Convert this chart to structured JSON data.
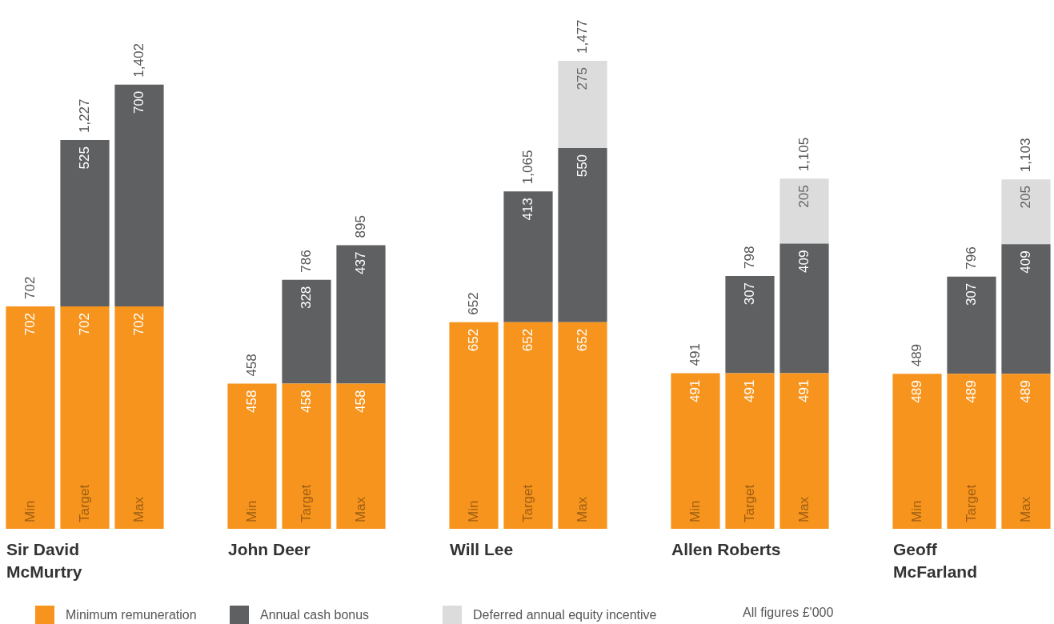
{
  "chart_data": [
    {
      "type": "bar",
      "title": "Sir David McMurtry",
      "categories": [
        "Min",
        "Target",
        "Max"
      ],
      "stacked": true,
      "data_labels": true,
      "legend": "bottom",
      "totals": [
        "702",
        "1,227",
        "1,402"
      ],
      "annotations": [
        "All figures £'000"
      ],
      "series": [
        {
          "name": "Minimum remuneration",
          "color": "#f7941d",
          "values": [
            702,
            702,
            702
          ]
        },
        {
          "name": "Annual cash bonus",
          "color": "#5f6062",
          "values": [
            null,
            525,
            700
          ]
        },
        {
          "name": "Deferred annual equity incentive",
          "color": "#dcdcdc",
          "values": [
            null,
            null,
            null
          ]
        }
      ]
    },
    {
      "type": "bar",
      "title": "John Deer",
      "categories": [
        "Min",
        "Target",
        "Max"
      ],
      "stacked": true,
      "data_labels": true,
      "totals": [
        "458",
        "786",
        "895"
      ],
      "series": [
        {
          "color": "#f7941d",
          "values": [
            458,
            458,
            458
          ]
        },
        {
          "color": "#5f6062",
          "values": [
            null,
            328,
            437
          ]
        }
      ]
    },
    {
      "type": "bar",
      "title": "Will Lee",
      "categories": [
        "Min",
        "Target",
        "Max"
      ],
      "stacked": true,
      "data_labels": true,
      "totals": [
        "652",
        "1,065",
        "1,477"
      ],
      "series": [
        {
          "color": "#f7941d",
          "values": [
            652,
            652,
            652
          ]
        },
        {
          "color": "#5f6062",
          "values": [
            null,
            413,
            550
          ]
        },
        {
          "color": "#dcdcdc",
          "values": [
            null,
            null,
            275
          ]
        }
      ]
    },
    {
      "type": "bar",
      "title": "Allen Roberts",
      "categories": [
        "Min",
        "Target",
        "Max"
      ],
      "stacked": true,
      "data_labels": true,
      "totals": [
        "491",
        "798",
        "1,105"
      ],
      "series": [
        {
          "color": "#f7941d",
          "values": [
            491,
            491,
            491
          ]
        },
        {
          "color": "#5f6062",
          "values": [
            null,
            307,
            409
          ]
        },
        {
          "color": "#dcdcdc",
          "values": [
            null,
            null,
            205
          ]
        }
      ]
    },
    {
      "type": "bar",
      "title": "Geoff McFarland",
      "categories": [
        "Min",
        "Target",
        "Max"
      ],
      "stacked": true,
      "data_labels": true,
      "totals": [
        "489",
        "796",
        "1,103"
      ],
      "series": [
        {
          "color": "#f7941d",
          "values": [
            489,
            489,
            489
          ]
        },
        {
          "color": "#5f6062",
          "values": [
            null,
            307,
            409
          ]
        },
        {
          "color": "#dcdcdc",
          "values": [
            null,
            null,
            205
          ]
        }
      ]
    }
  ]
}
